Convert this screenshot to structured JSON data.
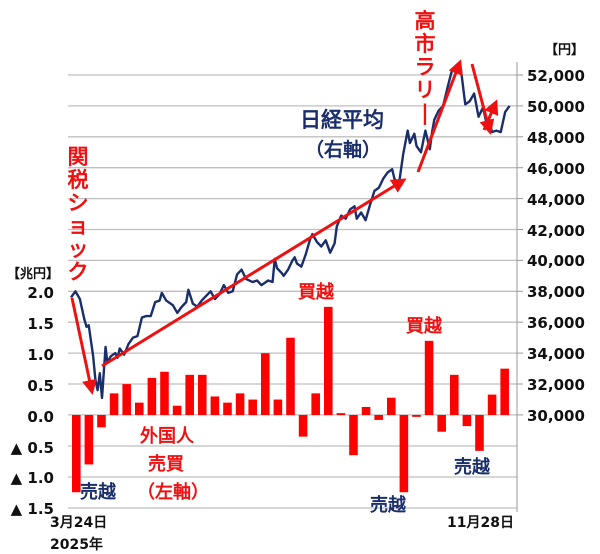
{
  "chart_data": {
    "type": "bar+line",
    "title": "",
    "left_axis": {
      "unit_label": "【兆円】",
      "ticks": [
        "2.0",
        "1.5",
        "1.0",
        "0.5",
        "0.0",
        "▲ 0.5",
        "▲ 1.0",
        "▲ 1.5"
      ],
      "ylim": [
        -1.5,
        2.0
      ]
    },
    "right_axis": {
      "unit_label": "【円】",
      "ticks": [
        "52,000",
        "50,000",
        "48,000",
        "46,000",
        "44,000",
        "42,000",
        "40,000",
        "38,000",
        "36,000",
        "34,000",
        "32,000",
        "30,000"
      ],
      "ylim": [
        30000,
        52000
      ]
    },
    "x_labels": {
      "start": "3月24日",
      "start_year": "2025年",
      "end": "11月28日"
    },
    "series": [
      {
        "name": "外国人売買（左軸）",
        "type": "bar",
        "color": "#ff0000",
        "unit": "兆円",
        "values": [
          -1.25,
          -0.8,
          -0.2,
          0.35,
          0.5,
          0.2,
          0.6,
          0.7,
          0.15,
          0.65,
          0.65,
          0.3,
          0.2,
          0.35,
          0.25,
          1.0,
          0.25,
          1.25,
          -0.35,
          0.35,
          1.75,
          0.03,
          -0.65,
          0.13,
          -0.08,
          0.28,
          -1.25,
          -0.03,
          1.2,
          -0.27,
          0.65,
          -0.18,
          -0.58,
          0.33,
          0.75
        ]
      },
      {
        "name": "日経平均（右軸）",
        "type": "line",
        "color": "#1a2e6b",
        "unit": "円",
        "points": [
          [
            0,
            37600
          ],
          [
            0.01,
            38000
          ],
          [
            0.02,
            37500
          ],
          [
            0.03,
            36200
          ],
          [
            0.035,
            35700
          ],
          [
            0.04,
            35800
          ],
          [
            0.05,
            33800
          ],
          [
            0.055,
            32300
          ],
          [
            0.06,
            31600
          ],
          [
            0.065,
            32700
          ],
          [
            0.07,
            31100
          ],
          [
            0.078,
            34400
          ],
          [
            0.082,
            33400
          ],
          [
            0.09,
            33800
          ],
          [
            0.1,
            34000
          ],
          [
            0.105,
            33700
          ],
          [
            0.11,
            34300
          ],
          [
            0.12,
            33900
          ],
          [
            0.13,
            34600
          ],
          [
            0.14,
            35000
          ],
          [
            0.15,
            35100
          ],
          [
            0.16,
            36300
          ],
          [
            0.17,
            36400
          ],
          [
            0.18,
            36400
          ],
          [
            0.19,
            37300
          ],
          [
            0.2,
            37400
          ],
          [
            0.205,
            37900
          ],
          [
            0.215,
            37400
          ],
          [
            0.23,
            37100
          ],
          [
            0.24,
            36600
          ],
          [
            0.25,
            37000
          ],
          [
            0.26,
            37300
          ],
          [
            0.265,
            38100
          ],
          [
            0.275,
            37200
          ],
          [
            0.285,
            37000
          ],
          [
            0.295,
            37400
          ],
          [
            0.305,
            37700
          ],
          [
            0.315,
            38000
          ],
          [
            0.325,
            37500
          ],
          [
            0.335,
            37800
          ],
          [
            0.345,
            38400
          ],
          [
            0.355,
            37900
          ],
          [
            0.365,
            38000
          ],
          [
            0.375,
            39100
          ],
          [
            0.385,
            39400
          ],
          [
            0.395,
            38800
          ],
          [
            0.41,
            38600
          ],
          [
            0.42,
            38700
          ],
          [
            0.43,
            38400
          ],
          [
            0.445,
            38700
          ],
          [
            0.455,
            38600
          ],
          [
            0.46,
            40100
          ],
          [
            0.465,
            39500
          ],
          [
            0.475,
            39200
          ],
          [
            0.48,
            39000
          ],
          [
            0.49,
            39400
          ],
          [
            0.5,
            40000
          ],
          [
            0.505,
            40200
          ],
          [
            0.51,
            39800
          ],
          [
            0.52,
            39600
          ],
          [
            0.53,
            40400
          ],
          [
            0.54,
            41400
          ],
          [
            0.545,
            41700
          ],
          [
            0.555,
            41200
          ],
          [
            0.565,
            40900
          ],
          [
            0.575,
            41300
          ],
          [
            0.585,
            40500
          ],
          [
            0.595,
            41100
          ],
          [
            0.6,
            42200
          ],
          [
            0.61,
            42900
          ],
          [
            0.62,
            42700
          ],
          [
            0.63,
            43300
          ],
          [
            0.64,
            43500
          ],
          [
            0.645,
            42700
          ],
          [
            0.655,
            43100
          ],
          [
            0.665,
            42600
          ],
          [
            0.675,
            43600
          ],
          [
            0.685,
            44500
          ],
          [
            0.695,
            44700
          ],
          [
            0.705,
            45300
          ],
          [
            0.715,
            45700
          ],
          [
            0.725,
            45900
          ],
          [
            0.73,
            45300
          ],
          [
            0.74,
            44900
          ],
          [
            0.75,
            46900
          ],
          [
            0.76,
            48400
          ],
          [
            0.765,
            47600
          ],
          [
            0.775,
            48200
          ],
          [
            0.78,
            47400
          ],
          [
            0.79,
            47000
          ],
          [
            0.8,
            48400
          ],
          [
            0.81,
            47200
          ],
          [
            0.815,
            48300
          ],
          [
            0.82,
            49100
          ],
          [
            0.83,
            49700
          ],
          [
            0.84,
            50000
          ],
          [
            0.85,
            51200
          ],
          [
            0.86,
            52300
          ],
          [
            0.87,
            52500
          ],
          [
            0.88,
            52400
          ],
          [
            0.89,
            50100
          ],
          [
            0.9,
            50300
          ],
          [
            0.91,
            50800
          ],
          [
            0.92,
            49300
          ],
          [
            0.93,
            49900
          ],
          [
            0.94,
            48600
          ],
          [
            0.945,
            49100
          ],
          [
            0.95,
            48300
          ],
          [
            0.96,
            48400
          ],
          [
            0.97,
            48300
          ],
          [
            0.98,
            49600
          ],
          [
            0.99,
            50000
          ]
        ]
      }
    ],
    "annotations": [
      {
        "text": "関税ショック",
        "color": "#ee1111"
      },
      {
        "text": "高市ラリー",
        "color": "#ee1111"
      },
      {
        "text": "日経平均",
        "color": "#1a2e6b"
      },
      {
        "text": "（右軸）",
        "color": "#1a2e6b"
      },
      {
        "text": "外国人",
        "color": "#ee1111"
      },
      {
        "text": "売買",
        "color": "#ee1111"
      },
      {
        "text": "（左軸）",
        "color": "#ee1111"
      },
      {
        "text": "買越",
        "color": "#ee1111"
      },
      {
        "text": "買越",
        "color": "#ee1111"
      },
      {
        "text": "売越",
        "color": "#1a2e6b"
      },
      {
        "text": "売越",
        "color": "#1a2e6b"
      },
      {
        "text": "売越",
        "color": "#1a2e6b"
      }
    ],
    "grid": true,
    "legend_position": "inline annotations"
  },
  "labels": {
    "left_unit": "【兆円】",
    "right_unit": "【円】",
    "tariff_shock": "関税ショック",
    "takaichi_rally": "高市ラリー",
    "nikkei": "日経平均",
    "nikkei_axis": "（右軸）",
    "foreign": "外国人",
    "trade": "売買",
    "foreign_axis": "（左軸）",
    "buy1": "買越",
    "buy2": "買越",
    "sell1": "売越",
    "sell2": "売越",
    "sell3": "売越",
    "x_start": "3月24日",
    "x_year": "2025年",
    "x_end": "11月28日"
  },
  "colors": {
    "bar": "#ff0000",
    "line": "#1a2e6b",
    "arrow": "#ee1111",
    "grid": "#bfbfbf"
  }
}
